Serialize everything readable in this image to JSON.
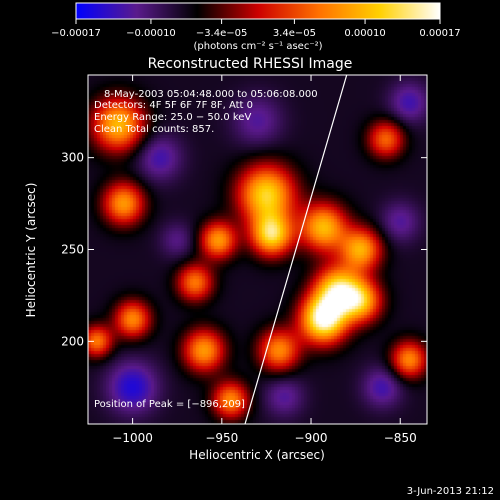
{
  "chart_data": {
    "type": "heatmap",
    "title": "Reconstructed RHESSI Image",
    "xlabel": "Heliocentric X (arcsec)",
    "ylabel": "Heliocentric Y (arcsec)",
    "xlim": [
      -1025,
      -835
    ],
    "ylim": [
      155,
      345
    ],
    "x_ticks": [
      -1000,
      -950,
      -900,
      -850
    ],
    "x_tick_labels": [
      "−1000",
      "−950",
      "−900",
      "−850"
    ],
    "y_ticks": [
      200,
      250,
      300
    ],
    "y_tick_labels": [
      "200",
      "250",
      "300"
    ],
    "colorbar": {
      "range": [
        -0.00017,
        0.00017
      ],
      "ticks": [
        -0.00017,
        -0.0001,
        -3.4e-05,
        3.4e-05,
        0.0001,
        0.00017
      ],
      "tick_labels": [
        "−0.00017",
        "−0.00010",
        "−3.4e−05",
        "3.4e−05",
        "0.00010",
        "0.00017"
      ],
      "unit_label": "(photons cm⁻² s⁻¹ asec⁻²)",
      "colors": [
        "#0000ff",
        "#5a1a8c",
        "#000000",
        "#cc0000",
        "#ff7000",
        "#ffd000",
        "#ffffff"
      ]
    },
    "annotations": {
      "time_range": "8‐May‐2003 05:04:48.000 to 05:06:08.000",
      "detectors": "Detectors: 4F 5F 6F 7F 8F, Att 0",
      "energy": "Energy Range: 25.0 − 50.0 keV",
      "clean": "Clean    Total counts: 857.",
      "peak": "Position of Peak = [−896,209]"
    },
    "limb_line": {
      "start": [
        -937,
        155
      ],
      "end": [
        -880,
        345
      ],
      "color": "#ffffff"
    },
    "sources": [
      {
        "x": -893,
        "y": 212,
        "amp": 0.00017,
        "sigma": 9
      },
      {
        "x": -885,
        "y": 228,
        "amp": 0.00012,
        "sigma": 9
      },
      {
        "x": -872,
        "y": 222,
        "amp": 9e-05,
        "sigma": 8
      },
      {
        "x": -925,
        "y": 280,
        "amp": 0.00012,
        "sigma": 11
      },
      {
        "x": -922,
        "y": 258,
        "amp": 0.00012,
        "sigma": 8
      },
      {
        "x": -893,
        "y": 262,
        "amp": 0.0001,
        "sigma": 9
      },
      {
        "x": -872,
        "y": 250,
        "amp": 9e-05,
        "sigma": 8
      },
      {
        "x": -1008,
        "y": 318,
        "amp": 0.0001,
        "sigma": 10
      },
      {
        "x": -1005,
        "y": 275,
        "amp": 8e-05,
        "sigma": 8
      },
      {
        "x": -952,
        "y": 255,
        "amp": 8e-05,
        "sigma": 7
      },
      {
        "x": -965,
        "y": 232,
        "amp": 6e-05,
        "sigma": 7
      },
      {
        "x": -960,
        "y": 195,
        "amp": 8e-05,
        "sigma": 8
      },
      {
        "x": -1000,
        "y": 212,
        "amp": 7e-05,
        "sigma": 7
      },
      {
        "x": -918,
        "y": 195,
        "amp": 7e-05,
        "sigma": 8
      },
      {
        "x": -945,
        "y": 168,
        "amp": 7e-05,
        "sigma": 7
      },
      {
        "x": -858,
        "y": 310,
        "amp": 5e-05,
        "sigma": 7
      },
      {
        "x": -845,
        "y": 190,
        "amp": 7e-05,
        "sigma": 7
      },
      {
        "x": -1020,
        "y": 200,
        "amp": 6e-05,
        "sigma": 6
      },
      {
        "x": -1000,
        "y": 175,
        "amp": -8e-05,
        "sigma": 10
      },
      {
        "x": -985,
        "y": 300,
        "amp": -6e-05,
        "sigma": 9
      },
      {
        "x": -930,
        "y": 320,
        "amp": -5e-05,
        "sigma": 10
      },
      {
        "x": -845,
        "y": 330,
        "amp": -6e-05,
        "sigma": 8
      },
      {
        "x": -850,
        "y": 265,
        "amp": -5e-05,
        "sigma": 8
      },
      {
        "x": -915,
        "y": 170,
        "amp": -5e-05,
        "sigma": 8
      },
      {
        "x": -975,
        "y": 255,
        "amp": -4e-05,
        "sigma": 7
      },
      {
        "x": -860,
        "y": 175,
        "amp": -6e-05,
        "sigma": 8
      }
    ]
  },
  "footer": {
    "date": "3‐Jun‐2013 21:12"
  }
}
